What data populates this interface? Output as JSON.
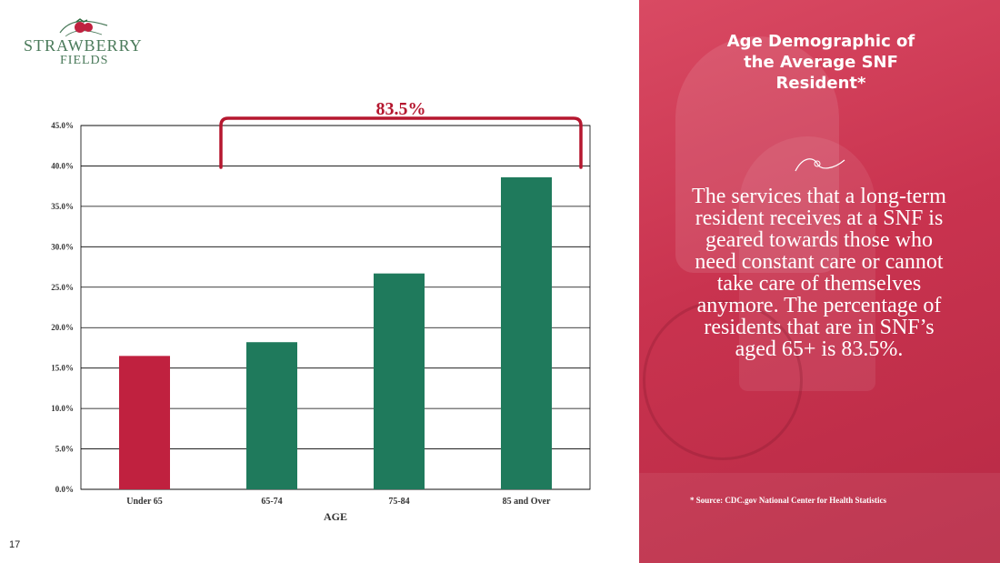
{
  "logo": {
    "line1": "STRAWBERRY",
    "line2": "FIELDS"
  },
  "page_number": "17",
  "panel": {
    "title": "Age Demographic of the Average SNF Resident*",
    "body": "The services that a long-term resident receives at a SNF is geared towards those who need constant care or cannot take care of themselves anymore. The percentage of residents that are in SNF’s aged 65+ is 83.5%.",
    "source": "* Source: CDC.gov National Center for Health Statistics"
  },
  "colors": {
    "highlight": "#c0213f",
    "bar": "#1f7a5c",
    "accent": "#b5172f",
    "panel": "#cc3a55"
  },
  "chart_data": {
    "type": "bar",
    "categories": [
      "Under 65",
      "65-74",
      "75-84",
      "85 and Over"
    ],
    "values": [
      16.5,
      18.2,
      26.7,
      38.6
    ],
    "xlabel": "AGE",
    "ylabel": "",
    "ylim": [
      0,
      45
    ],
    "yticks": [
      "0.0%",
      "5.0%",
      "10.0%",
      "15.0%",
      "20.0%",
      "25.0%",
      "30.0%",
      "35.0%",
      "40.0%",
      "45.0%"
    ],
    "grid": true,
    "highlight_index": 0,
    "bracket": {
      "label": "83.5%",
      "from_category": "65-74",
      "to_category": "85 and Over"
    }
  }
}
